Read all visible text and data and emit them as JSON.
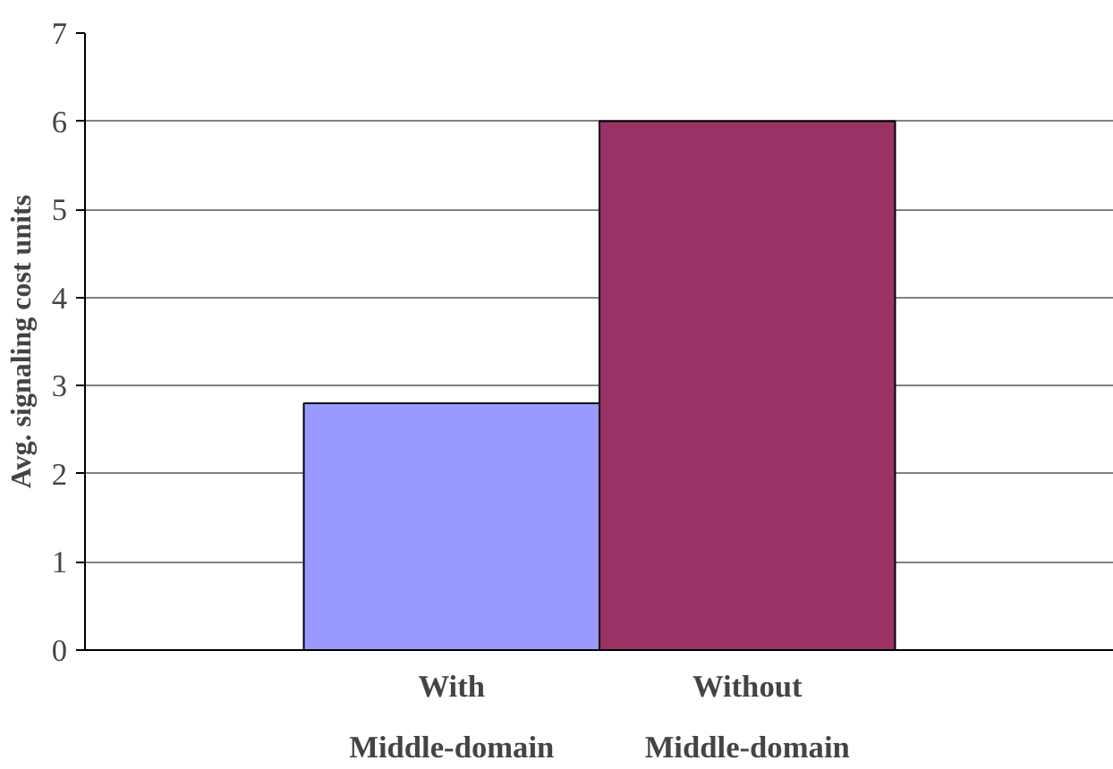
{
  "chart_data": {
    "type": "bar",
    "ylabel": "Avg. signaling cost units",
    "categories": [
      "With\nMiddle-domain",
      "Without\nMiddle-domain"
    ],
    "values": [
      2.8,
      6
    ],
    "colors": [
      "#9999ff",
      "#993366"
    ],
    "ylim": [
      0,
      7
    ],
    "yticks": [
      0,
      1,
      2,
      3,
      4,
      5,
      6,
      7
    ],
    "grid": "y"
  }
}
